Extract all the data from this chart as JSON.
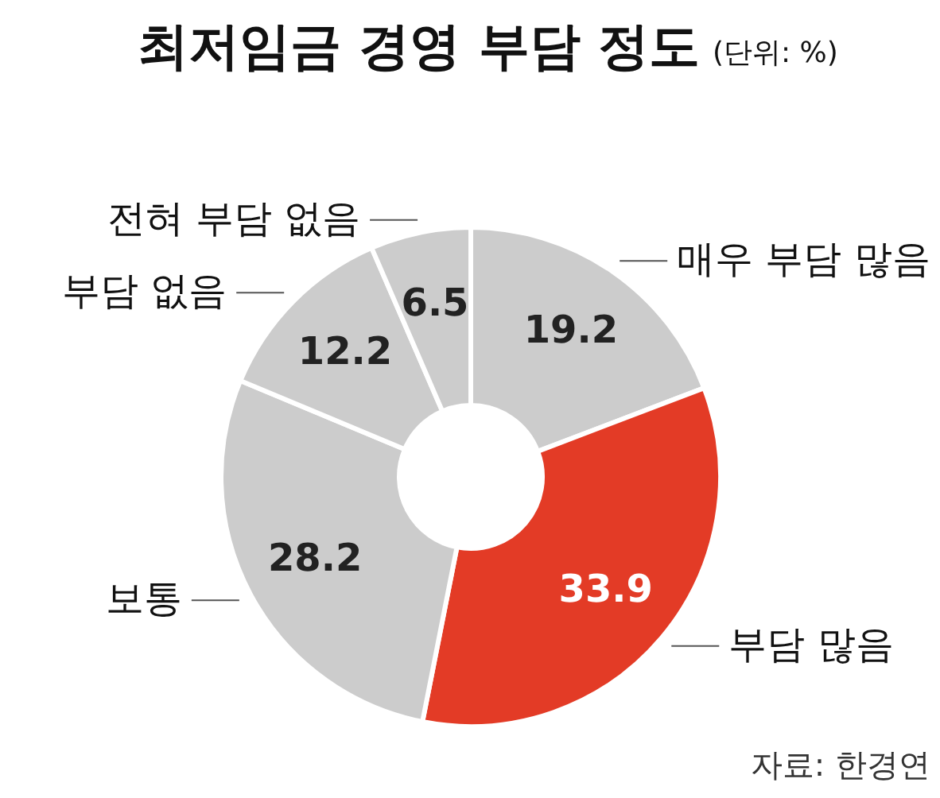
{
  "chart_data": {
    "type": "donut",
    "title": "최저임금 경영 부담 정도",
    "subtitle": "(단위: %)",
    "categories": [
      "매우 부담 많음",
      "부담 많음",
      "보통",
      "부담 없음",
      "전혀 부담 없음"
    ],
    "values": [
      19.2,
      33.9,
      28.2,
      12.2,
      6.5
    ],
    "colors": [
      "#cccccc",
      "#e33b26",
      "#cccccc",
      "#cccccc",
      "#cccccc"
    ],
    "data_labels": true,
    "annotations": [
      "자료: 한경연"
    ]
  }
}
